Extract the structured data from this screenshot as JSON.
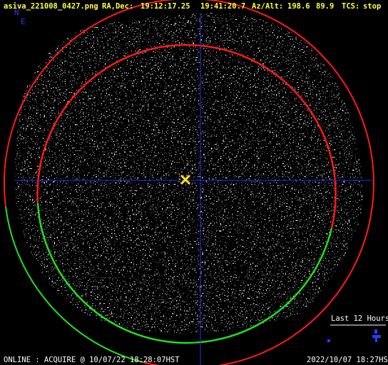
{
  "header": {
    "filename": "asiva_221008_0427.png",
    "radec_label": "RA,Dec:",
    "ra": "19:12:17.25",
    "dec": "19:41:20.7",
    "azalt_label": "Az/Alt:",
    "az": "198.6",
    "alt": "89.9",
    "tcs_label": "TCS:",
    "tcs": "stop"
  },
  "compass": {
    "north": "N",
    "east": "E"
  },
  "legend": {
    "label": "Last 12 Hours"
  },
  "footer": {
    "status": "ONLINE : ACQUIRE @ 10/07/22 18:28:07HST",
    "timestamp": "2022/10/07 18:27HST"
  }
}
